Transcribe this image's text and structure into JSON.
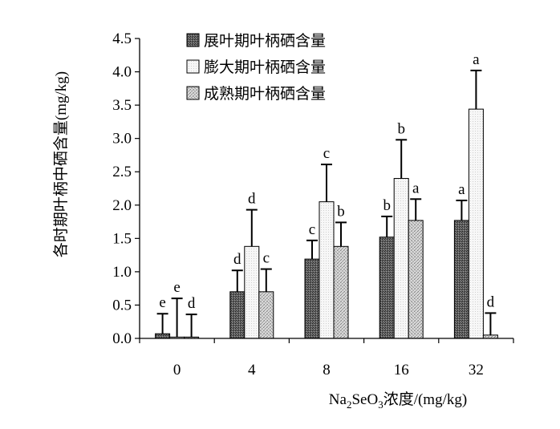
{
  "chart_data": {
    "type": "bar",
    "ylabel": "各时期叶柄中硒含量(mg/kg)",
    "xlabel": {
      "prefix": "Na",
      "sub1": "2",
      "mid": "SeO",
      "sub2": "3",
      "suffix": "浓度/(mg/kg)"
    },
    "categories": [
      "0",
      "4",
      "8",
      "16",
      "32"
    ],
    "ylim": [
      0,
      4.5
    ],
    "yticks": [
      "0.0",
      "0.5",
      "1.0",
      "1.5",
      "2.0",
      "2.5",
      "3.0",
      "3.5",
      "4.0",
      "4.5"
    ],
    "grid": false,
    "legend_position": "top-left",
    "series": [
      {
        "name": "展叶期叶柄硒含量",
        "values": [
          0.07,
          0.7,
          1.19,
          1.52,
          1.77
        ],
        "errors": [
          0.3,
          0.32,
          0.28,
          0.31,
          0.3
        ],
        "labels": [
          "e",
          "d",
          "c",
          "b",
          "a"
        ],
        "color": "#555555"
      },
      {
        "name": "膨大期叶柄硒含量",
        "values": [
          0.02,
          1.38,
          2.05,
          2.4,
          3.44
        ],
        "errors": [
          0.58,
          0.55,
          0.56,
          0.58,
          0.58
        ],
        "labels": [
          "e",
          "d",
          "c",
          "b",
          "a"
        ],
        "color": "#f2f2f2"
      },
      {
        "name": "成熟期叶柄硒含量",
        "values": [
          0.02,
          0.7,
          1.38,
          1.77,
          0.05
        ],
        "errors": [
          0.34,
          0.34,
          0.36,
          0.32,
          0.33
        ],
        "labels": [
          "d",
          "c",
          "b",
          "a",
          "d"
        ],
        "color": "#bbbbbb"
      }
    ]
  }
}
